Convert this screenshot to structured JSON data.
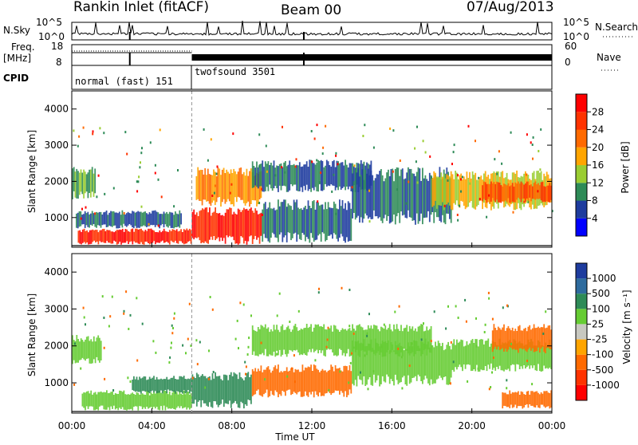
{
  "header": {
    "station": "Rankin Inlet (fitACF)",
    "beam": "Beam 00",
    "date": "07/Aug/2013"
  },
  "nsky_panel": {
    "left_label": "N.Sky",
    "right_label": "N.Search",
    "left_ticks": [
      "10^5",
      "10^0"
    ],
    "right_ticks": [
      "10^5",
      "10^0"
    ]
  },
  "freq_panel": {
    "left_label_line1": "Freq.",
    "left_label_line2": "[MHz]",
    "right_label": "Nave",
    "left_ticks": [
      "18",
      "8"
    ],
    "right_ticks": [
      "60",
      "0"
    ]
  },
  "cpid_panel": {
    "label": "CPID",
    "modes": [
      "normal (fast) 151",
      "twofsound 3501"
    ]
  },
  "time_axis": {
    "label": "Time UT",
    "ticks": [
      "00:00",
      "04:00",
      "08:00",
      "12:00",
      "16:00",
      "20:00",
      "00:00"
    ]
  },
  "range_axis": {
    "label": "Slant Range [km]",
    "ticks": [
      "1000",
      "2000",
      "3000",
      "4000"
    ]
  },
  "power_scale": {
    "label": "Power [dB]",
    "ticks": [
      "4",
      "8",
      "12",
      "16",
      "20",
      "24",
      "28"
    ],
    "colors": [
      "#0000ff",
      "#1e3c9e",
      "#2e8b57",
      "#9acd32",
      "#ffa500",
      "#ff6a00",
      "#ff3300",
      "#ff0000"
    ]
  },
  "velocity_scale": {
    "label": "Velocity [m s⁻¹]",
    "ticks": [
      "1000",
      "500",
      "100",
      "25",
      "-25",
      "-100",
      "-500",
      "-1000"
    ],
    "colors": [
      "#1e3c9e",
      "#2e6b9e",
      "#2e8b57",
      "#66cc33",
      "#c8c8c0",
      "#ffa500",
      "#ff6a00",
      "#ff3300",
      "#ff0000"
    ]
  },
  "chart_data": {
    "type": "heatmap",
    "x_unit": "hours UT",
    "xlim": [
      0,
      24
    ],
    "ylim": [
      180,
      4500
    ],
    "power_regions": [
      {
        "t0": 0.3,
        "t1": 6.0,
        "r0": 250,
        "r1": 700,
        "level": 28
      },
      {
        "t0": 0.2,
        "t1": 5.5,
        "r0": 700,
        "r1": 1200,
        "level": 8
      },
      {
        "t0": 0.0,
        "t1": 1.2,
        "r0": 1500,
        "r1": 2400,
        "level": 12
      },
      {
        "t0": 6.0,
        "t1": 9.5,
        "r0": 250,
        "r1": 1300,
        "level": 28
      },
      {
        "t0": 6.2,
        "t1": 9.5,
        "r0": 1300,
        "r1": 2400,
        "level": 20
      },
      {
        "t0": 9.5,
        "t1": 14.0,
        "r0": 300,
        "r1": 1500,
        "level": 8
      },
      {
        "t0": 9.0,
        "t1": 15.0,
        "r0": 1700,
        "r1": 2600,
        "level": 8
      },
      {
        "t0": 14.0,
        "t1": 19.0,
        "r0": 800,
        "r1": 2400,
        "level": 8
      },
      {
        "t0": 18.0,
        "t1": 24.0,
        "r0": 1200,
        "r1": 2300,
        "level": 16
      },
      {
        "t0": 20.5,
        "t1": 24.0,
        "r0": 1400,
        "r1": 2000,
        "level": 24
      }
    ],
    "velocity_regions": [
      {
        "t0": 0.0,
        "t1": 1.5,
        "r0": 1500,
        "r1": 2300,
        "level": 25
      },
      {
        "t0": 0.5,
        "t1": 6.0,
        "r0": 250,
        "r1": 800,
        "level": 25
      },
      {
        "t0": 3.0,
        "t1": 6.0,
        "r0": 700,
        "r1": 1200,
        "level": 100
      },
      {
        "t0": 6.0,
        "t1": 9.0,
        "r0": 300,
        "r1": 1300,
        "level": 100
      },
      {
        "t0": 9.0,
        "t1": 14.0,
        "r0": 600,
        "r1": 1500,
        "level": -500
      },
      {
        "t0": 9.0,
        "t1": 18.0,
        "r0": 1700,
        "r1": 2600,
        "level": 25
      },
      {
        "t0": 14.0,
        "t1": 19.0,
        "r0": 900,
        "r1": 2200,
        "level": 25
      },
      {
        "t0": 19.0,
        "t1": 24.0,
        "r0": 1300,
        "r1": 2200,
        "level": 25
      },
      {
        "t0": 21.0,
        "t1": 24.0,
        "r0": 1800,
        "r1": 2600,
        "level": -500
      },
      {
        "t0": 21.5,
        "t1": 24.0,
        "r0": 300,
        "r1": 800,
        "level": -500
      }
    ]
  }
}
